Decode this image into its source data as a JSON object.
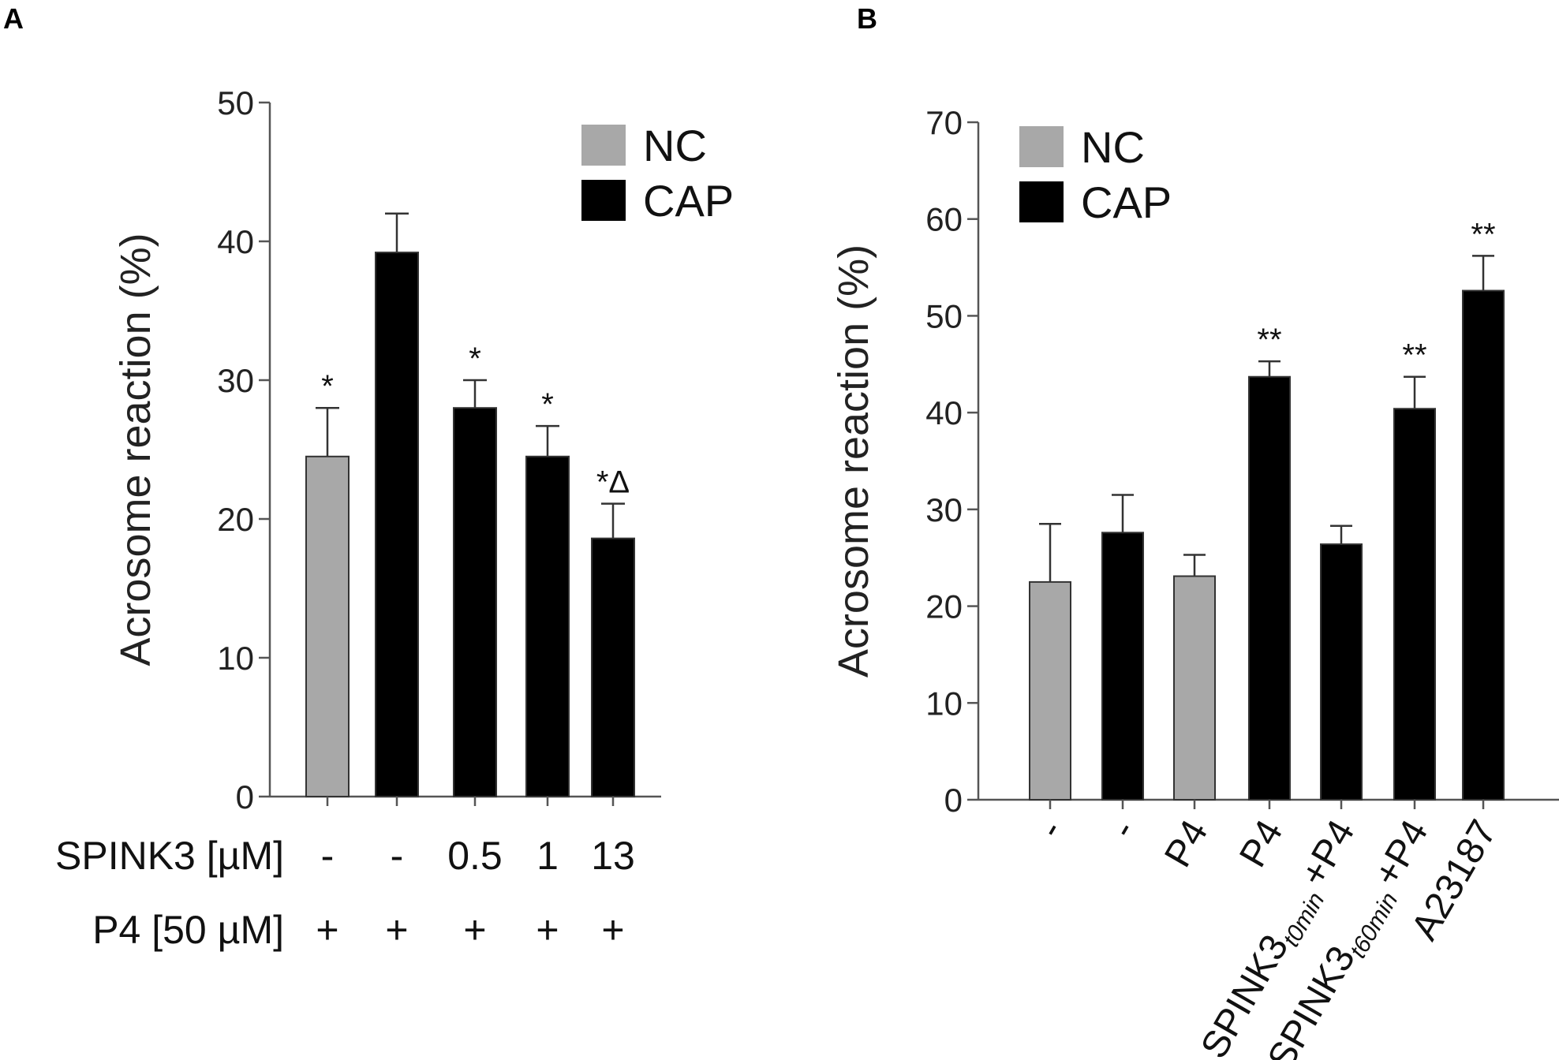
{
  "chart_data": [
    {
      "panel": "A",
      "type": "bar",
      "ylabel": "Acrosome reaction (%)",
      "ylim": [
        0,
        50
      ],
      "yticks": [
        0,
        10,
        20,
        30,
        40,
        50
      ],
      "legend": [
        {
          "label": "NC",
          "color": "#a8a8a8"
        },
        {
          "label": "CAP",
          "color": "#000000"
        }
      ],
      "bars": [
        {
          "value": 24.5,
          "error": 3.5,
          "group": "NC",
          "annotation": "*"
        },
        {
          "value": 39.2,
          "error": 2.8,
          "group": "CAP",
          "annotation": ""
        },
        {
          "value": 28.0,
          "error": 2.0,
          "group": "CAP",
          "annotation": "*"
        },
        {
          "value": 24.5,
          "error": 2.2,
          "group": "CAP",
          "annotation": "*"
        },
        {
          "value": 18.6,
          "error": 2.5,
          "group": "CAP",
          "annotation": "*Δ"
        }
      ],
      "condition_rows": [
        {
          "label": "SPINK3 [µM]",
          "values": [
            "-",
            "-",
            "0.5",
            "1",
            "13"
          ]
        },
        {
          "label": "P4 [50 µM]",
          "values": [
            "+",
            "+",
            "+",
            "+",
            "+"
          ]
        }
      ]
    },
    {
      "panel": "B",
      "type": "bar",
      "ylabel": "Acrosome reaction (%)",
      "ylim": [
        0,
        70
      ],
      "yticks": [
        0,
        10,
        20,
        30,
        40,
        50,
        60,
        70
      ],
      "legend": [
        {
          "label": "NC",
          "color": "#a8a8a8"
        },
        {
          "label": "CAP",
          "color": "#000000"
        }
      ],
      "bars": [
        {
          "value": 22.5,
          "error": 6.0,
          "group": "NC",
          "annotation": ""
        },
        {
          "value": 27.6,
          "error": 3.9,
          "group": "CAP",
          "annotation": ""
        },
        {
          "value": 23.1,
          "error": 2.2,
          "group": "NC",
          "annotation": ""
        },
        {
          "value": 43.7,
          "error": 1.6,
          "group": "CAP",
          "annotation": "**"
        },
        {
          "value": 26.4,
          "error": 1.9,
          "group": "CAP",
          "annotation": ""
        },
        {
          "value": 40.4,
          "error": 3.3,
          "group": "CAP",
          "annotation": "**"
        },
        {
          "value": 52.6,
          "error": 3.6,
          "group": "CAP",
          "annotation": "**"
        }
      ],
      "xlabels": [
        {
          "main": "-",
          "sub": "",
          "suffix": ""
        },
        {
          "main": "-",
          "sub": "",
          "suffix": ""
        },
        {
          "main": "P4",
          "sub": "",
          "suffix": ""
        },
        {
          "main": "P4",
          "sub": "",
          "suffix": ""
        },
        {
          "main": "SPINK3",
          "sub": "t0min",
          "suffix": "+P4"
        },
        {
          "main": "SPINK3",
          "sub": "t60min",
          "suffix": "+P4"
        },
        {
          "main": "A23187",
          "sub": "",
          "suffix": ""
        }
      ]
    }
  ],
  "panel_labels": [
    "A",
    "B"
  ]
}
